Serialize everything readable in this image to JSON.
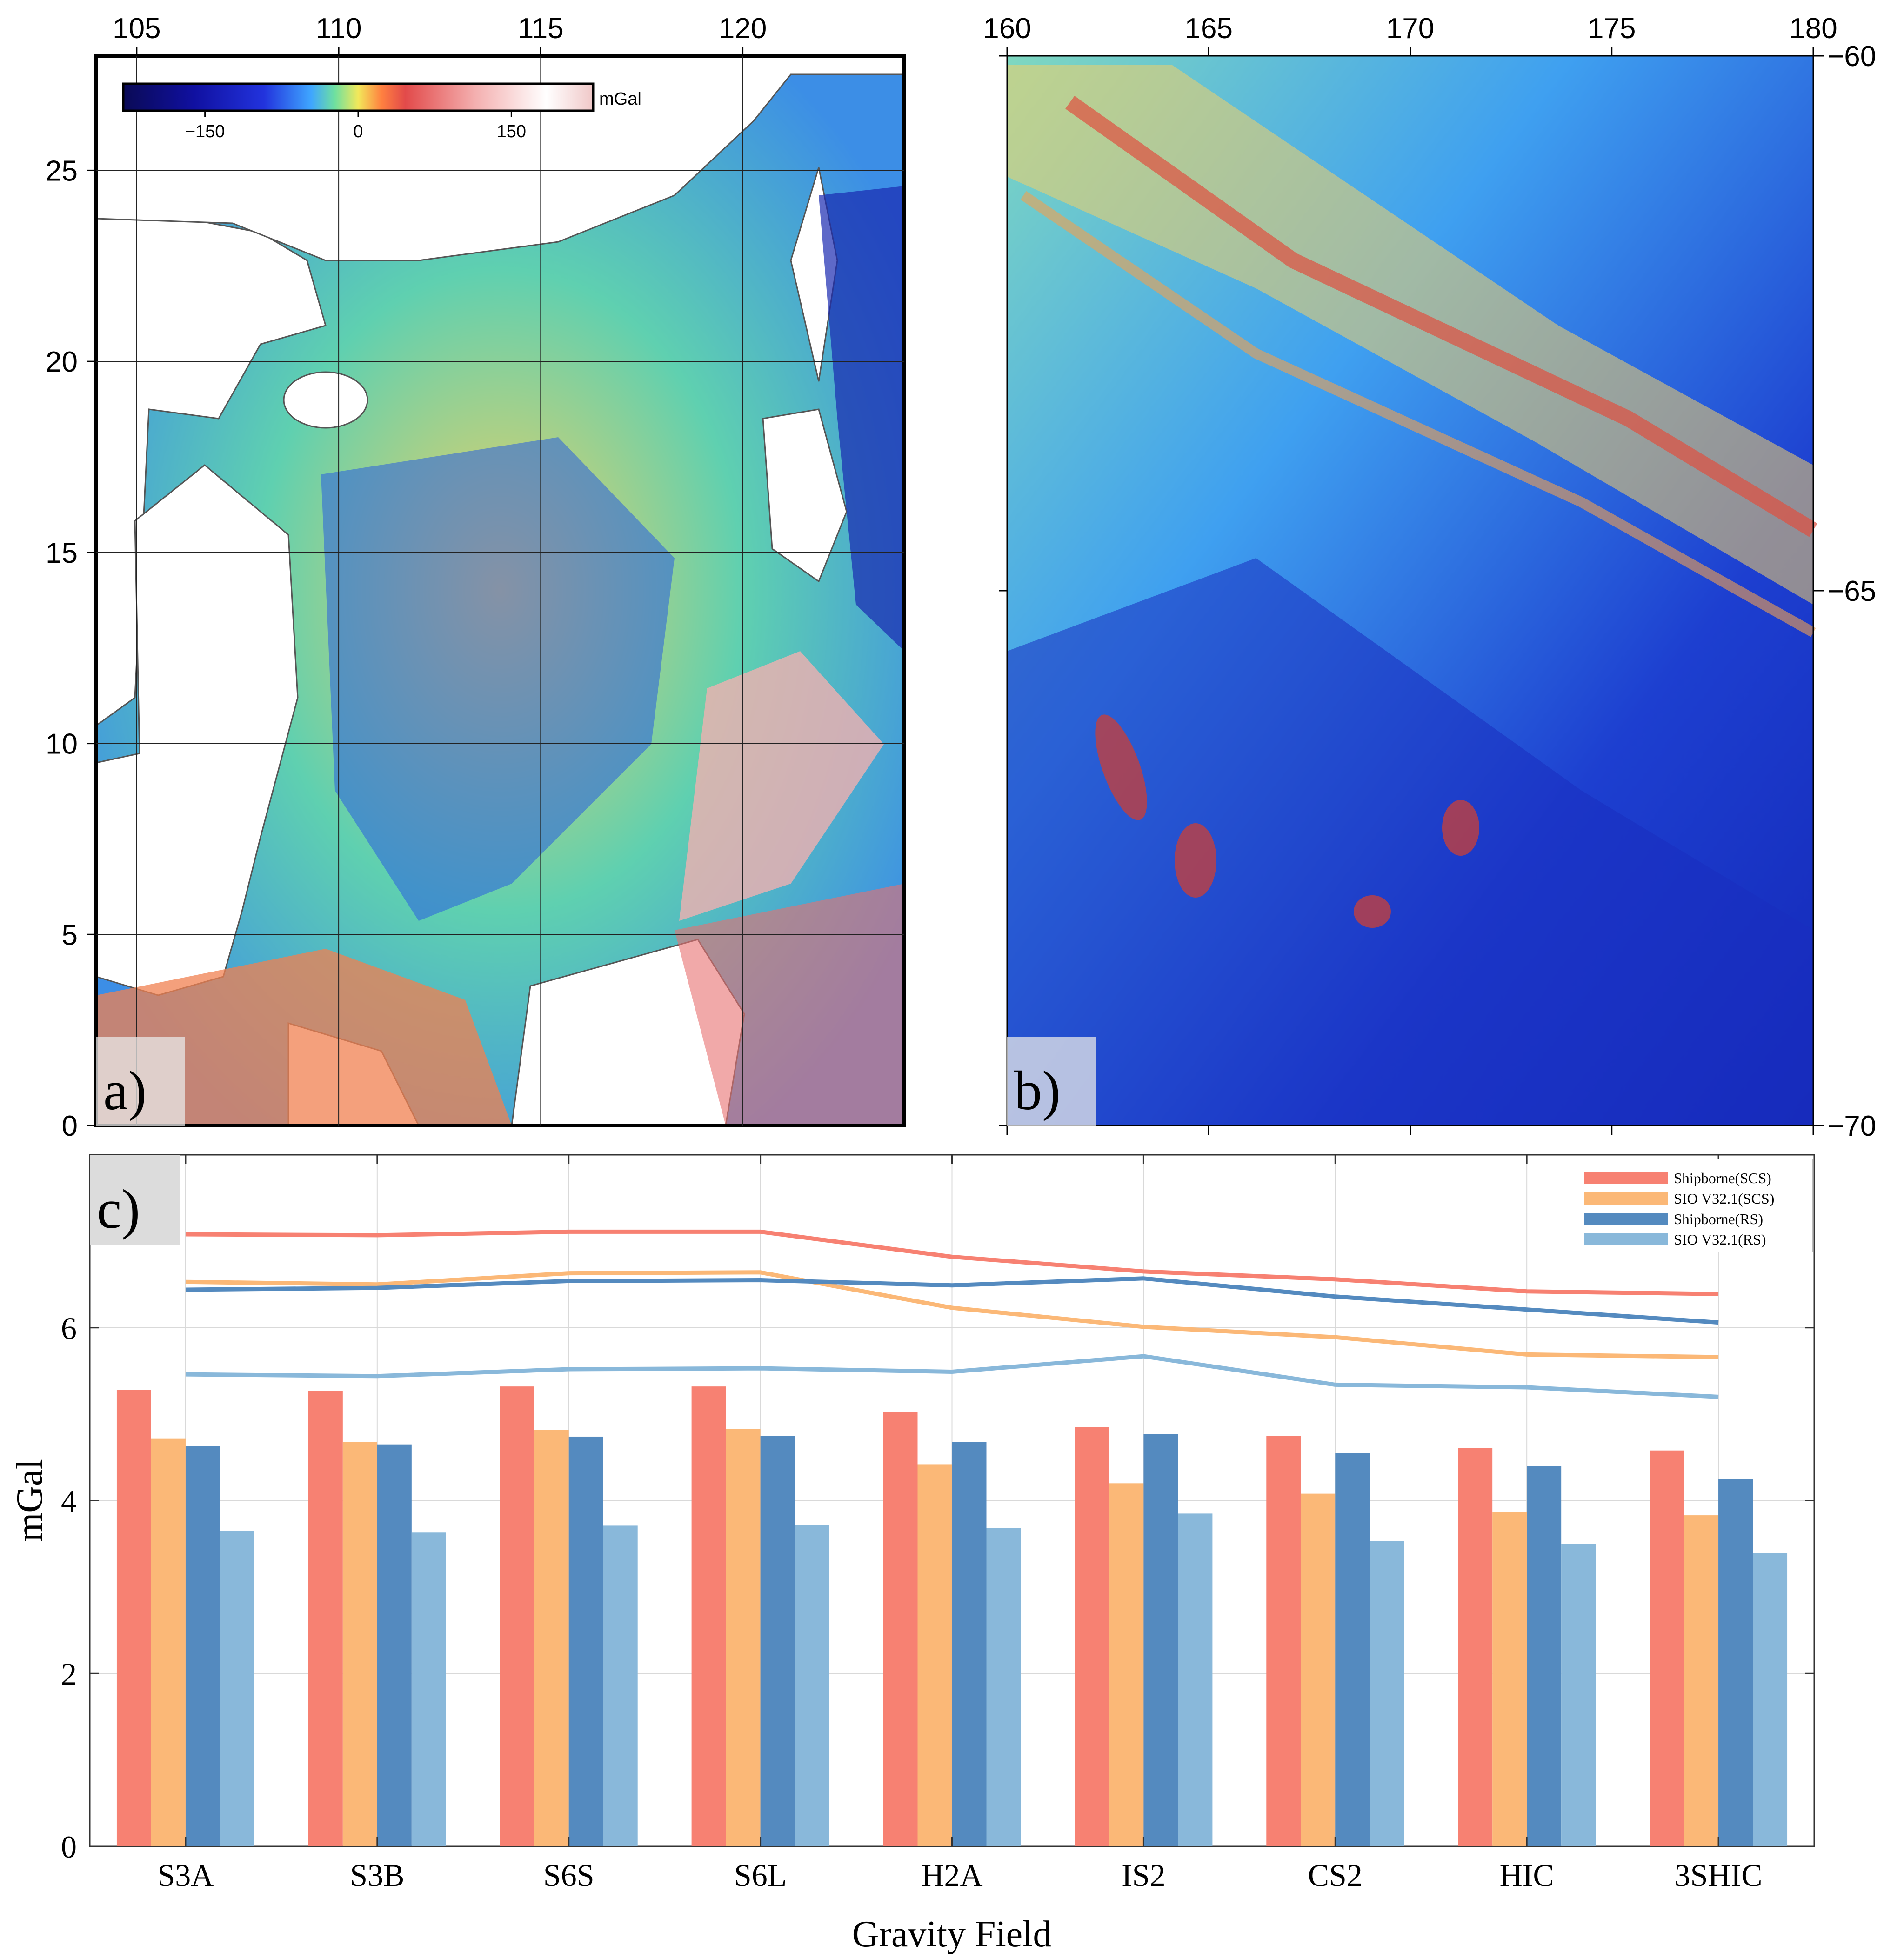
{
  "panel_a": {
    "label": "a)",
    "x_ticks": [
      "105",
      "110",
      "115",
      "120"
    ],
    "y_ticks": [
      "0",
      "5",
      "10",
      "15",
      "20",
      "25"
    ],
    "colorbar": {
      "unit": "mGal",
      "ticks": [
        "−150",
        "0",
        "150"
      ],
      "tick_values": [
        -150,
        0,
        150
      ],
      "range": [
        -230,
        230
      ]
    },
    "x_range": [
      104,
      124
    ],
    "y_range": [
      0,
      28
    ]
  },
  "panel_b": {
    "label": "b)",
    "x_ticks": [
      "160",
      "165",
      "170",
      "175",
      "180"
    ],
    "y_ticks": [
      "−60",
      "−65",
      "−70"
    ],
    "x_range": [
      160,
      180
    ],
    "y_range": [
      -70,
      -60
    ]
  },
  "chart_data": {
    "type": "bar",
    "panel_label": "c)",
    "categories": [
      "S3A",
      "S3B",
      "S6S",
      "S6L",
      "H2A",
      "IS2",
      "CS2",
      "HIC",
      "3SHIC"
    ],
    "xlabel": "Gravity Field",
    "ylabel": "mGal",
    "ylim": [
      0,
      8
    ],
    "yticks": [
      "0",
      "2",
      "4",
      "6"
    ],
    "grid": true,
    "legend_position": "top-right",
    "series": [
      {
        "name": "Shipborne(SCS)",
        "color": "#f78172",
        "values": [
          5.28,
          5.27,
          5.32,
          5.32,
          5.02,
          4.85,
          4.75,
          4.61,
          4.58
        ],
        "line_values": [
          7.08,
          7.07,
          7.11,
          7.11,
          6.82,
          6.65,
          6.56,
          6.42,
          6.39
        ]
      },
      {
        "name": "SIO V32.1(SCS)",
        "color": "#fbb877",
        "values": [
          4.72,
          4.68,
          4.82,
          4.83,
          4.42,
          4.2,
          4.08,
          3.87,
          3.83
        ],
        "line_values": [
          6.53,
          6.5,
          6.63,
          6.64,
          6.23,
          6.01,
          5.89,
          5.69,
          5.66
        ]
      },
      {
        "name": "Shipborne(RS)",
        "color": "#548abf",
        "values": [
          4.63,
          4.65,
          4.74,
          4.75,
          4.68,
          4.77,
          4.55,
          4.4,
          4.25
        ],
        "line_values": [
          6.44,
          6.46,
          6.54,
          6.55,
          6.49,
          6.57,
          6.36,
          6.21,
          6.06
        ]
      },
      {
        "name": "SIO V32.1(RS)",
        "color": "#89b8da",
        "values": [
          3.65,
          3.63,
          3.71,
          3.72,
          3.68,
          3.85,
          3.53,
          3.5,
          3.39
        ],
        "line_values": [
          5.46,
          5.44,
          5.52,
          5.53,
          5.49,
          5.67,
          5.34,
          5.31,
          5.2
        ]
      }
    ]
  }
}
